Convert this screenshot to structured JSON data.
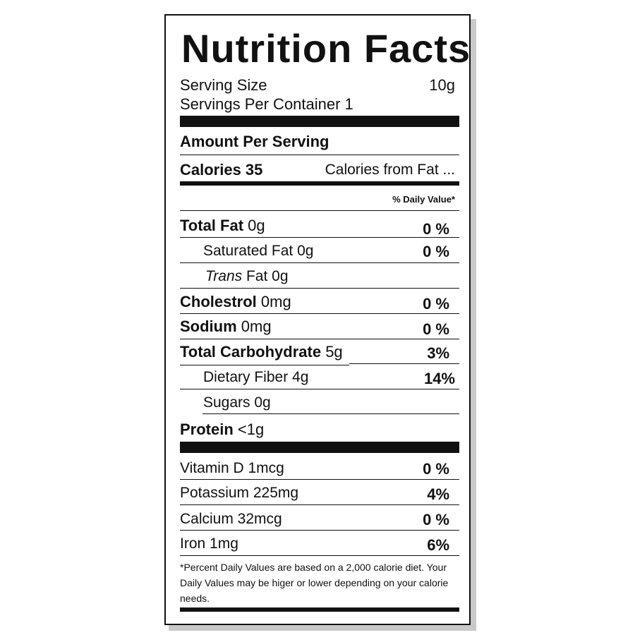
{
  "label": {
    "title": "Nutrition Facts",
    "serving_size_label": "Serving Size",
    "serving_size_value": "10g",
    "servings_per_container": "Servings Per Container  1",
    "amount_per_serving": "Amount Per Serving",
    "calories": "Calories 35",
    "calories_from_fat": "Calories from Fat ...",
    "daily_value_header": "% Daily Value*",
    "nutrients": {
      "total_fat": {
        "label": "Total Fat",
        "amount": "0g",
        "dv": "0 %"
      },
      "saturated_fat": {
        "label": "Saturated Fat 0g",
        "dv": "0 %"
      },
      "trans_fat": {
        "label_italic": "Trans",
        "label_rest": " Fat 0g"
      },
      "cholesterol": {
        "label": "Cholestrol",
        "amount": "0mg",
        "dv": "0 %"
      },
      "sodium": {
        "label": "Sodium",
        "amount": "0mg",
        "dv": "0 %"
      },
      "total_carbohydrate": {
        "label": "Total Carbohydrate",
        "amount": "5g",
        "dv": "3%"
      },
      "dietary_fiber": {
        "label": "Dietary Fiber 4g",
        "dv": "14%"
      },
      "sugars": {
        "label": "Sugars 0g"
      },
      "protein": {
        "label": "Protein",
        "amount": "<1g"
      }
    },
    "vitamins": [
      {
        "label": "Vitamin D 1mcg",
        "dv": "0 %"
      },
      {
        "label": "Potassium 225mg",
        "dv": "4%"
      },
      {
        "label": "Calcium 32mcg",
        "dv": "0 %"
      },
      {
        "label": "Iron 1mg",
        "dv": "6%"
      }
    ],
    "footnote": "*Percent Daily Values are based on a 2,000 calorie diet. Your Daily Values may be higer or lower depending on your calorie needs."
  }
}
